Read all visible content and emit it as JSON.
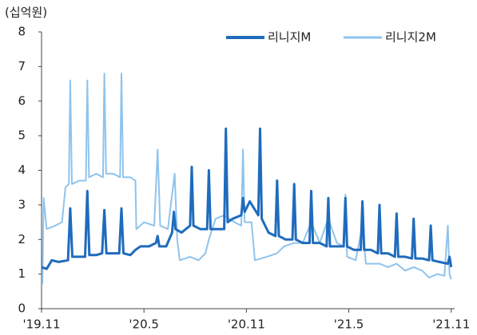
{
  "chart_data": {
    "type": "line",
    "unit_label": "(십억원)",
    "xlim": [
      0,
      24.2
    ],
    "xticks": [
      {
        "value": 0,
        "label": "'19.11"
      },
      {
        "value": 6,
        "label": "'20.5"
      },
      {
        "value": 12,
        "label": "'20.11"
      },
      {
        "value": 18,
        "label": "'21.5"
      },
      {
        "value": 24,
        "label": "'21.11"
      }
    ],
    "ylim": [
      0,
      8
    ],
    "yticks": [
      0,
      1,
      2,
      3,
      4,
      5,
      6,
      7,
      8
    ],
    "grid": false,
    "legend": "top-right",
    "series": [
      {
        "name": "리니지M",
        "color": "#1f6bbd",
        "x": [
          0,
          0.3,
          0.6,
          1.0,
          1.55,
          1.68,
          1.8,
          2.2,
          2.55,
          2.68,
          2.8,
          3.2,
          3.55,
          3.68,
          3.8,
          4.2,
          4.55,
          4.68,
          4.8,
          5.2,
          5.5,
          5.8,
          6.3,
          6.7,
          6.8,
          6.9,
          7.3,
          7.65,
          7.75,
          7.85,
          8.2,
          8.7,
          8.8,
          8.9,
          9.3,
          9.7,
          9.8,
          9.9,
          10.3,
          10.7,
          10.8,
          10.9,
          11.2,
          11.7,
          11.8,
          11.9,
          12.2,
          12.7,
          12.8,
          12.9,
          13.3,
          13.7,
          13.8,
          13.9,
          14.3,
          14.7,
          14.8,
          14.9,
          15.3,
          15.7,
          15.8,
          15.9,
          16.3,
          16.7,
          16.8,
          16.9,
          17.3,
          17.7,
          17.8,
          17.9,
          18.3,
          18.7,
          18.8,
          18.9,
          19.3,
          19.7,
          19.8,
          19.9,
          20.3,
          20.7,
          20.8,
          20.9,
          21.3,
          21.7,
          21.8,
          21.9,
          22.3,
          22.7,
          22.8,
          22.9,
          23.3,
          23.8,
          23.9,
          24.0
        ],
        "values": [
          1.2,
          1.15,
          1.4,
          1.35,
          1.4,
          2.9,
          1.5,
          1.5,
          1.5,
          3.4,
          1.55,
          1.55,
          1.6,
          2.85,
          1.6,
          1.6,
          1.6,
          2.9,
          1.6,
          1.55,
          1.7,
          1.8,
          1.8,
          1.9,
          2.1,
          1.8,
          1.8,
          2.2,
          2.8,
          2.3,
          2.2,
          2.4,
          4.1,
          2.4,
          2.3,
          2.3,
          4.0,
          2.3,
          2.3,
          2.3,
          5.2,
          2.5,
          2.6,
          2.7,
          3.2,
          2.8,
          3.1,
          2.7,
          5.2,
          2.6,
          2.2,
          2.1,
          3.7,
          2.1,
          2.0,
          2.0,
          3.6,
          2.0,
          1.9,
          1.9,
          3.4,
          1.9,
          1.9,
          1.8,
          3.2,
          1.8,
          1.8,
          1.8,
          3.2,
          1.8,
          1.7,
          1.7,
          3.1,
          1.7,
          1.7,
          1.6,
          3.0,
          1.6,
          1.6,
          1.5,
          2.75,
          1.5,
          1.5,
          1.45,
          2.6,
          1.45,
          1.45,
          1.4,
          2.4,
          1.4,
          1.35,
          1.3,
          1.5,
          1.2
        ]
      },
      {
        "name": "리니지2M",
        "color": "#8fc3ec",
        "x": [
          0.05,
          0.12,
          0.3,
          0.8,
          1.2,
          1.4,
          1.6,
          1.68,
          1.78,
          2.2,
          2.6,
          2.68,
          2.78,
          3.2,
          3.6,
          3.68,
          3.78,
          4.2,
          4.6,
          4.68,
          4.78,
          5.2,
          5.5,
          5.55,
          6.0,
          6.6,
          6.8,
          6.95,
          7.4,
          7.8,
          7.95,
          8.1,
          8.7,
          9.2,
          9.6,
          9.8,
          10.2,
          10.7,
          11.0,
          11.3,
          11.7,
          11.8,
          11.9,
          12.3,
          12.5,
          13.2,
          13.8,
          14.2,
          14.8,
          15.3,
          15.8,
          16.3,
          16.8,
          17.3,
          17.7,
          17.8,
          17.9,
          18.4,
          18.8,
          19.0,
          19.8,
          20.3,
          20.8,
          21.3,
          21.8,
          22.3,
          22.7,
          23.2,
          23.6,
          23.8,
          23.9,
          24.0
        ],
        "values": [
          0.7,
          3.2,
          2.3,
          2.4,
          2.5,
          3.5,
          3.6,
          6.6,
          3.6,
          3.7,
          3.7,
          6.6,
          3.8,
          3.9,
          3.8,
          6.8,
          3.9,
          3.9,
          3.8,
          6.8,
          3.8,
          3.8,
          3.7,
          2.3,
          2.5,
          2.4,
          4.6,
          2.4,
          2.3,
          3.9,
          2.0,
          1.4,
          1.5,
          1.4,
          1.6,
          2.0,
          2.6,
          2.7,
          2.6,
          2.5,
          2.4,
          4.6,
          2.5,
          2.5,
          1.4,
          1.5,
          1.6,
          1.8,
          1.9,
          1.9,
          2.5,
          1.9,
          2.6,
          1.9,
          1.8,
          3.3,
          1.5,
          1.4,
          2.4,
          1.3,
          1.3,
          1.2,
          1.3,
          1.1,
          1.2,
          1.1,
          0.9,
          1.0,
          0.95,
          2.4,
          1.0,
          0.85
        ]
      }
    ]
  }
}
